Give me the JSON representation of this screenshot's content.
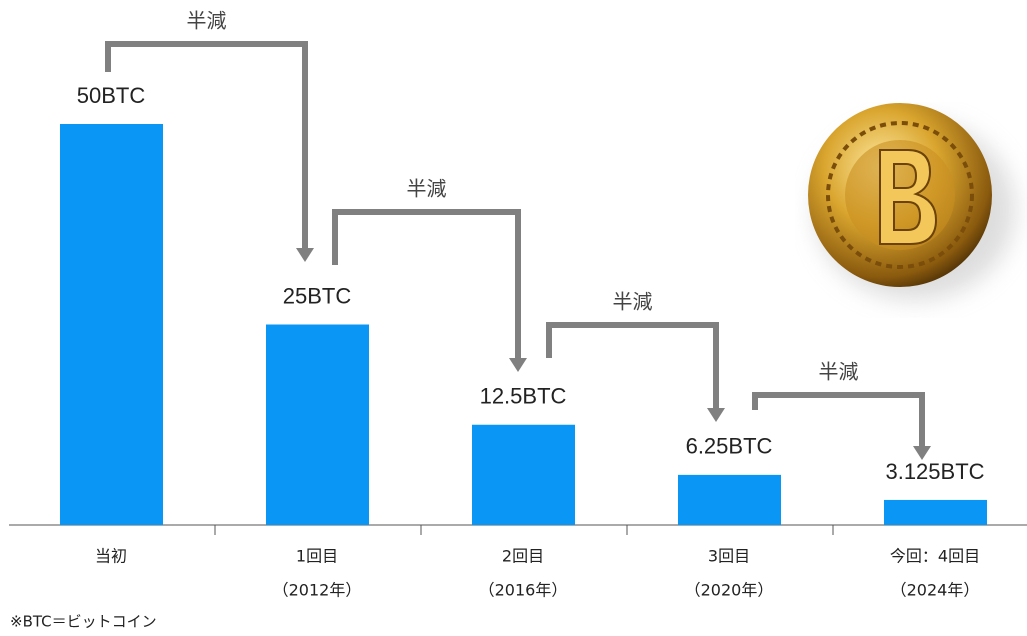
{
  "chart_data": {
    "type": "bar",
    "categories": [
      "当初",
      "1回目",
      "2回目",
      "3回目",
      "今回：4回目"
    ],
    "subcategories": [
      null,
      "（2012年）",
      "（2016年）",
      "（2020年）",
      "（2024年）"
    ],
    "values": [
      50,
      25,
      12.5,
      6.25,
      3.125
    ],
    "value_labels": [
      "50BTC",
      "25BTC",
      "12.5BTC",
      "6.25BTC",
      "3.125BTC"
    ],
    "color": "#0a96f4",
    "ylim": [
      0,
      50
    ],
    "annotations": [
      "半減",
      "半減",
      "半減",
      "半減"
    ],
    "footnote": "※BTC＝ビットコイン"
  }
}
